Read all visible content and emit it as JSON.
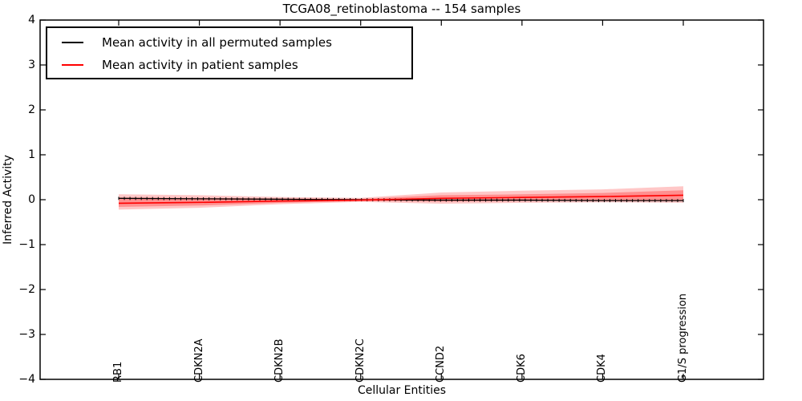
{
  "chart_data": {
    "type": "line",
    "title": "TCGA08_retinoblastoma -- 154 samples",
    "xlabel": "Cellular Entities",
    "ylabel": "Inferred Activity",
    "ylim": [
      -4,
      4
    ],
    "ytick_labels": [
      "4",
      "3",
      "2",
      "1",
      "0",
      "−1",
      "−2",
      "−3",
      "−4"
    ],
    "categories": [
      "RB1",
      "CDKN2A",
      "CDKN2B",
      "CDKN2C",
      "CCND2",
      "CDK6",
      "CDK4",
      "G1/S progression"
    ],
    "grid": false,
    "legend_position": "upper left",
    "series": [
      {
        "name": "Mean activity in all permuted samples",
        "color": "#000000",
        "values": [
          0.03,
          0.02,
          0.01,
          0.0,
          -0.01,
          -0.01,
          -0.02,
          -0.02
        ],
        "errorbar_cap_half_height": 0.035
      },
      {
        "name": "Mean activity in patient samples",
        "color": "#ff0000",
        "values": [
          -0.08,
          -0.06,
          -0.03,
          -0.01,
          0.03,
          0.05,
          0.07,
          0.1
        ]
      }
    ],
    "bands": [
      {
        "name": "patient-sample spread outer",
        "color": "rgba(255,0,0,0.22)",
        "upper": [
          0.12,
          0.1,
          0.06,
          0.04,
          0.16,
          0.2,
          0.23,
          0.3
        ],
        "lower": [
          -0.22,
          -0.18,
          -0.1,
          -0.05,
          -0.09,
          -0.07,
          -0.06,
          -0.07
        ]
      },
      {
        "name": "patient-sample spread inner",
        "color": "rgba(255,0,0,0.28)",
        "upper": [
          0.05,
          0.04,
          0.03,
          0.02,
          0.1,
          0.12,
          0.15,
          0.21
        ],
        "lower": [
          -0.16,
          -0.13,
          -0.07,
          -0.03,
          -0.04,
          -0.03,
          -0.02,
          -0.03
        ]
      }
    ]
  }
}
